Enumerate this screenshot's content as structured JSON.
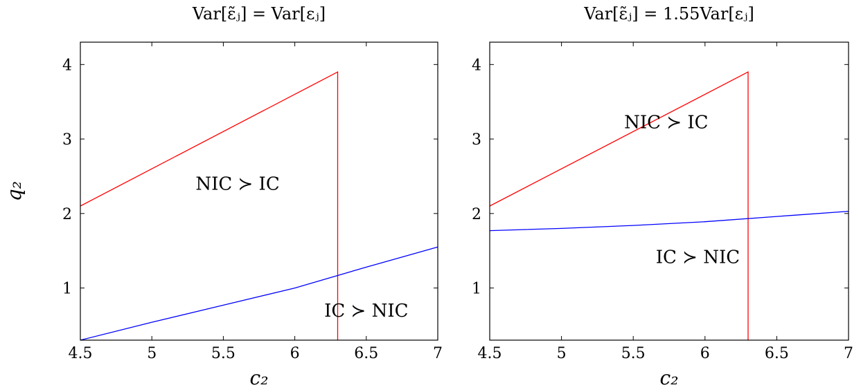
{
  "chart_data": [
    {
      "type": "line",
      "title": "Var[ε̃ⱼ] = Var[εⱼ]",
      "xlabel": "c₂",
      "ylabel": "q₂",
      "xlim": [
        4.5,
        7
      ],
      "ylim": [
        0.3,
        4.3
      ],
      "xticks": [
        4.5,
        5,
        5.5,
        6,
        6.5,
        7
      ],
      "xtick_labels": [
        "4.5",
        "5",
        "5.5",
        "6",
        "6.5",
        "7"
      ],
      "yticks": [
        1,
        2,
        3,
        4
      ],
      "ytick_labels": [
        "1",
        "2",
        "3",
        "4"
      ],
      "grid": false,
      "series": [
        {
          "color": "#ff0000",
          "x": [
            4.5,
            6.3,
            6.3
          ],
          "y": [
            2.1,
            3.9,
            0.3
          ]
        },
        {
          "color": "#0000ff",
          "x": [
            4.5,
            5.0,
            5.5,
            6.0,
            6.5,
            7.0
          ],
          "y": [
            0.3,
            0.54,
            0.77,
            1.0,
            1.28,
            1.55
          ]
        }
      ],
      "annotations": [
        {
          "text": "NIC ≻ IC",
          "x": 5.6,
          "y": 2.4
        },
        {
          "text": "IC ≻ NIC",
          "x": 6.5,
          "y": 0.7
        }
      ]
    },
    {
      "type": "line",
      "title": "Var[ε̃ⱼ] = 1.55Var[εⱼ]",
      "xlabel": "c₂",
      "ylabel": "",
      "xlim": [
        4.5,
        7
      ],
      "ylim": [
        0.3,
        4.3
      ],
      "xticks": [
        4.5,
        5,
        5.5,
        6,
        6.5,
        7
      ],
      "xtick_labels": [
        "4.5",
        "5",
        "5.5",
        "6",
        "6.5",
        "7"
      ],
      "yticks": [
        1,
        2,
        3,
        4
      ],
      "ytick_labels": [
        "1",
        "2",
        "3",
        "4"
      ],
      "grid": false,
      "series": [
        {
          "color": "#ff0000",
          "x": [
            4.5,
            6.3,
            6.3
          ],
          "y": [
            2.1,
            3.9,
            0.3
          ]
        },
        {
          "color": "#0000ff",
          "x": [
            4.5,
            5.0,
            5.5,
            6.0,
            6.5,
            7.0
          ],
          "y": [
            1.77,
            1.8,
            1.84,
            1.89,
            1.96,
            2.03
          ]
        }
      ],
      "annotations": [
        {
          "text": "NIC ≻ IC",
          "x": 5.73,
          "y": 3.23
        },
        {
          "text": "IC ≻ NIC",
          "x": 5.95,
          "y": 1.42
        }
      ]
    }
  ]
}
